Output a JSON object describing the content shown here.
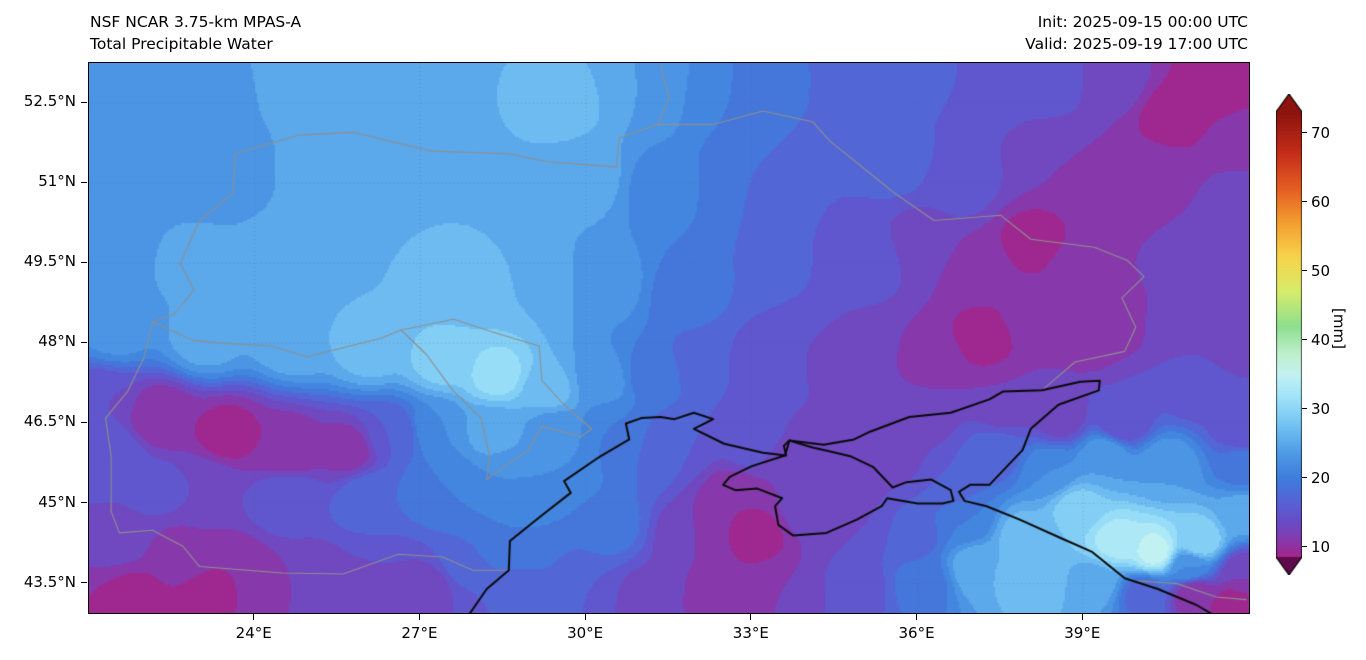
{
  "header": {
    "line1": "NSF NCAR 3.75-km MPAS-A",
    "line2": "Total Precipitable Water",
    "init": "Init: 2025-09-15 00:00 UTC",
    "valid": "Valid: 2025-09-19 17:00 UTC"
  },
  "chart_data": {
    "type": "heatmap",
    "title": "Total Precipitable Water",
    "units": "mm",
    "x_axis": {
      "label_ticks": [
        "24°E",
        "27°E",
        "30°E",
        "33°E",
        "36°E",
        "39°E"
      ],
      "tick_lons": [
        24,
        27,
        30,
        33,
        36,
        39
      ],
      "range": [
        21.0,
        42.0
      ]
    },
    "y_axis": {
      "label_ticks": [
        "52.5°N",
        "51°N",
        "49.5°N",
        "48°N",
        "46.5°N",
        "45°N",
        "43.5°N"
      ],
      "tick_lats": [
        52.5,
        51,
        49.5,
        48,
        46.5,
        45,
        43.5
      ],
      "range": [
        42.95,
        53.25
      ]
    },
    "colorbar": {
      "label": "[mm]",
      "ticks": [
        10,
        20,
        30,
        40,
        50,
        60,
        70
      ],
      "vmin": 8.5,
      "vmax": 73,
      "colormap": [
        [
          4,
          "#5e0a4d"
        ],
        [
          6,
          "#8c1266"
        ],
        [
          8,
          "#a81f7e"
        ],
        [
          10,
          "#93319f"
        ],
        [
          12,
          "#7a41b8"
        ],
        [
          14,
          "#664ec8"
        ],
        [
          16,
          "#5a5ed2"
        ],
        [
          18,
          "#4b6ed8"
        ],
        [
          20,
          "#3f7edc"
        ],
        [
          23,
          "#4b95e4"
        ],
        [
          26,
          "#63b2ee"
        ],
        [
          29,
          "#82cef4"
        ],
        [
          32,
          "#a3e4f8"
        ],
        [
          35,
          "#c2f1f2"
        ],
        [
          38,
          "#bfefcd"
        ],
        [
          42,
          "#8ddf8e"
        ],
        [
          47,
          "#d6ec6c"
        ],
        [
          52,
          "#f6d44c"
        ],
        [
          57,
          "#f39e31"
        ],
        [
          62,
          "#e45d22"
        ],
        [
          67,
          "#c52e1a"
        ],
        [
          73,
          "#8c130e"
        ]
      ]
    },
    "control_points": [
      [
        21.2,
        53.0,
        22
      ],
      [
        23.0,
        52.6,
        23
      ],
      [
        25.0,
        52.9,
        25
      ],
      [
        26.6,
        52.3,
        25
      ],
      [
        28.2,
        52.9,
        26
      ],
      [
        29.6,
        52.5,
        27
      ],
      [
        31.0,
        52.7,
        24
      ],
      [
        32.6,
        52.5,
        20
      ],
      [
        34.2,
        52.7,
        18
      ],
      [
        35.6,
        52.9,
        17
      ],
      [
        37.0,
        52.9,
        16
      ],
      [
        38.4,
        52.9,
        15
      ],
      [
        39.6,
        52.9,
        13
      ],
      [
        40.6,
        52.3,
        9
      ],
      [
        41.5,
        52.8,
        8
      ],
      [
        41.9,
        51.9,
        11
      ],
      [
        21.5,
        51.2,
        22
      ],
      [
        23.4,
        51.1,
        23
      ],
      [
        25.4,
        51.1,
        25
      ],
      [
        27.0,
        50.9,
        26
      ],
      [
        28.6,
        51.1,
        26
      ],
      [
        30.0,
        51.1,
        25
      ],
      [
        31.4,
        50.9,
        21
      ],
      [
        32.8,
        50.9,
        18
      ],
      [
        34.2,
        50.8,
        16
      ],
      [
        35.6,
        51.4,
        17
      ],
      [
        36.8,
        51.0,
        15
      ],
      [
        37.6,
        51.7,
        14
      ],
      [
        38.6,
        51.4,
        12
      ],
      [
        39.2,
        50.5,
        10
      ],
      [
        40.2,
        51.1,
        11
      ],
      [
        41.0,
        50.4,
        12
      ],
      [
        41.9,
        50.6,
        13
      ],
      [
        21.3,
        49.6,
        23
      ],
      [
        23.0,
        49.4,
        25
      ],
      [
        24.6,
        49.4,
        26
      ],
      [
        26.2,
        49.3,
        26
      ],
      [
        27.6,
        49.1,
        27
      ],
      [
        29.0,
        49.1,
        26
      ],
      [
        30.4,
        49.1,
        23
      ],
      [
        31.8,
        48.9,
        19
      ],
      [
        33.0,
        49.4,
        18
      ],
      [
        34.0,
        49.1,
        16
      ],
      [
        35.1,
        49.6,
        15
      ],
      [
        36.1,
        49.9,
        13
      ],
      [
        37.1,
        49.4,
        11
      ],
      [
        38.1,
        49.9,
        9
      ],
      [
        38.9,
        49.4,
        11
      ],
      [
        39.7,
        49.7,
        12
      ],
      [
        40.7,
        49.3,
        13
      ],
      [
        41.6,
        49.6,
        14
      ],
      [
        21.5,
        48.3,
        23
      ],
      [
        23.1,
        48.1,
        25
      ],
      [
        24.7,
        48.1,
        26
      ],
      [
        26.1,
        47.9,
        27
      ],
      [
        27.4,
        47.7,
        29
      ],
      [
        28.4,
        47.4,
        31
      ],
      [
        29.3,
        47.1,
        27
      ],
      [
        30.3,
        47.3,
        23
      ],
      [
        31.2,
        47.4,
        19
      ],
      [
        32.2,
        47.6,
        16
      ],
      [
        33.6,
        47.9,
        14
      ],
      [
        34.9,
        47.9,
        13
      ],
      [
        36.3,
        47.7,
        11
      ],
      [
        37.2,
        48.1,
        9
      ],
      [
        38.1,
        48.4,
        11
      ],
      [
        39.0,
        48.1,
        11
      ],
      [
        39.6,
        48.6,
        10
      ],
      [
        40.6,
        48.5,
        13
      ],
      [
        41.8,
        48.1,
        13
      ],
      [
        21.2,
        46.9,
        14
      ],
      [
        22.3,
        46.6,
        10
      ],
      [
        23.5,
        46.3,
        9
      ],
      [
        24.6,
        46.0,
        10
      ],
      [
        25.7,
        46.0,
        11
      ],
      [
        26.5,
        46.3,
        16
      ],
      [
        27.3,
        46.4,
        22
      ],
      [
        28.3,
        46.4,
        25
      ],
      [
        29.4,
        46.4,
        23
      ],
      [
        30.5,
        46.4,
        20
      ],
      [
        31.6,
        46.1,
        16
      ],
      [
        33.0,
        46.1,
        15
      ],
      [
        34.6,
        46.6,
        14
      ],
      [
        36.1,
        46.6,
        13
      ],
      [
        37.6,
        46.9,
        12
      ],
      [
        38.6,
        46.6,
        13
      ],
      [
        39.7,
        46.5,
        14
      ],
      [
        41.0,
        47.1,
        15
      ],
      [
        41.9,
        46.4,
        14
      ],
      [
        21.4,
        45.9,
        16
      ],
      [
        22.1,
        45.3,
        15
      ],
      [
        23.1,
        45.3,
        14
      ],
      [
        24.6,
        45.1,
        16
      ],
      [
        26.1,
        45.1,
        18
      ],
      [
        27.4,
        45.3,
        20
      ],
      [
        28.7,
        45.4,
        22
      ],
      [
        29.6,
        45.6,
        22
      ],
      [
        30.9,
        45.9,
        18
      ],
      [
        33.6,
        45.6,
        12
      ],
      [
        34.6,
        45.2,
        12
      ],
      [
        35.6,
        45.9,
        13
      ],
      [
        36.6,
        45.4,
        16
      ],
      [
        37.4,
        45.9,
        17
      ],
      [
        38.4,
        45.6,
        22
      ],
      [
        39.4,
        45.9,
        24
      ],
      [
        40.5,
        45.7,
        24
      ],
      [
        41.9,
        45.7,
        19
      ],
      [
        21.6,
        44.4,
        13
      ],
      [
        22.6,
        44.0,
        11
      ],
      [
        23.6,
        43.7,
        10
      ],
      [
        24.9,
        43.5,
        12
      ],
      [
        26.1,
        43.7,
        14
      ],
      [
        27.1,
        43.4,
        13
      ],
      [
        27.9,
        43.9,
        18
      ],
      [
        28.9,
        44.3,
        20
      ],
      [
        30.4,
        44.6,
        19
      ],
      [
        31.9,
        44.4,
        12
      ],
      [
        32.7,
        45.1,
        10
      ],
      [
        33.1,
        44.4,
        9
      ],
      [
        34.0,
        44.9,
        13
      ],
      [
        35.0,
        44.6,
        14
      ],
      [
        35.9,
        44.4,
        17
      ],
      [
        36.9,
        44.7,
        20
      ],
      [
        37.9,
        44.4,
        27
      ],
      [
        38.9,
        44.9,
        29
      ],
      [
        39.6,
        44.3,
        33
      ],
      [
        40.3,
        44.1,
        35
      ],
      [
        41.1,
        44.3,
        30
      ],
      [
        41.9,
        44.8,
        25
      ],
      [
        21.9,
        43.2,
        9
      ],
      [
        23.1,
        43.2,
        9
      ],
      [
        24.4,
        43.1,
        12
      ],
      [
        25.9,
        43.1,
        13
      ],
      [
        27.4,
        43.0,
        14
      ],
      [
        28.9,
        43.3,
        17
      ],
      [
        29.9,
        43.4,
        16
      ],
      [
        31.1,
        43.2,
        13
      ],
      [
        32.4,
        43.2,
        11
      ],
      [
        33.6,
        43.4,
        12
      ],
      [
        34.9,
        43.4,
        15
      ],
      [
        36.1,
        43.5,
        19
      ],
      [
        37.1,
        43.8,
        26
      ],
      [
        38.1,
        43.6,
        28
      ],
      [
        39.2,
        43.5,
        25
      ],
      [
        40.1,
        43.3,
        17
      ],
      [
        41.0,
        43.3,
        10
      ],
      [
        41.7,
        43.1,
        9
      ],
      [
        41.9,
        43.7,
        12
      ],
      [
        40.9,
        43.8,
        22
      ]
    ],
    "coastlines": [
      [
        [
          27.9,
          42.95
        ],
        [
          28.2,
          43.4
        ],
        [
          28.6,
          43.75
        ],
        [
          28.62,
          44.3
        ],
        [
          29.2,
          44.78
        ],
        [
          29.72,
          45.2
        ],
        [
          29.6,
          45.42
        ],
        [
          30.25,
          45.88
        ],
        [
          30.45,
          46.0
        ],
        [
          30.78,
          46.2
        ],
        [
          30.72,
          46.5
        ],
        [
          31.0,
          46.6
        ],
        [
          31.35,
          46.62
        ],
        [
          31.6,
          46.58
        ],
        [
          31.95,
          46.7
        ],
        [
          32.3,
          46.58
        ],
        [
          31.95,
          46.4
        ],
        [
          32.5,
          46.12
        ],
        [
          33.2,
          45.95
        ],
        [
          33.62,
          45.9
        ],
        [
          33.58,
          46.08
        ],
        [
          33.68,
          46.18
        ],
        [
          34.3,
          46.1
        ],
        [
          34.85,
          46.2
        ],
        [
          35.15,
          46.35
        ],
        [
          35.85,
          46.62
        ],
        [
          36.6,
          46.7
        ],
        [
          37.3,
          46.95
        ],
        [
          37.55,
          47.1
        ],
        [
          38.25,
          47.12
        ],
        [
          38.95,
          47.28
        ],
        [
          39.3,
          47.3
        ],
        [
          39.28,
          47.12
        ],
        [
          38.55,
          46.85
        ],
        [
          38.05,
          46.4
        ],
        [
          37.9,
          46.0
        ],
        [
          37.3,
          45.35
        ],
        [
          36.95,
          45.35
        ],
        [
          36.75,
          45.22
        ],
        [
          36.85,
          45.05
        ],
        [
          37.25,
          44.95
        ],
        [
          37.85,
          44.7
        ],
        [
          38.6,
          44.35
        ],
        [
          39.15,
          44.1
        ],
        [
          39.75,
          43.6
        ],
        [
          40.35,
          43.4
        ],
        [
          41.05,
          43.1
        ],
        [
          41.3,
          42.95
        ]
      ],
      [
        [
          33.68,
          46.18
        ],
        [
          33.6,
          45.9
        ],
        [
          33.0,
          45.7
        ],
        [
          32.6,
          45.5
        ],
        [
          32.48,
          45.35
        ],
        [
          32.7,
          45.25
        ],
        [
          33.1,
          45.28
        ],
        [
          33.55,
          45.1
        ],
        [
          33.42,
          44.95
        ],
        [
          33.48,
          44.6
        ],
        [
          33.75,
          44.4
        ],
        [
          34.35,
          44.45
        ],
        [
          34.9,
          44.7
        ],
        [
          35.35,
          44.95
        ],
        [
          35.45,
          45.1
        ],
        [
          36.0,
          45.0
        ],
        [
          36.45,
          45.0
        ],
        [
          36.65,
          45.05
        ],
        [
          36.6,
          45.25
        ],
        [
          36.25,
          45.45
        ],
        [
          35.8,
          45.4
        ],
        [
          35.55,
          45.3
        ],
        [
          35.2,
          45.68
        ],
        [
          34.8,
          45.88
        ],
        [
          34.4,
          45.98
        ],
        [
          34.1,
          46.05
        ],
        [
          33.68,
          46.18
        ]
      ]
    ],
    "borders": [
      [
        [
          23.65,
          51.55
        ],
        [
          24.8,
          51.9
        ],
        [
          25.8,
          51.95
        ],
        [
          27.2,
          51.6
        ],
        [
          28.6,
          51.55
        ],
        [
          29.3,
          51.4
        ],
        [
          30.55,
          51.3
        ],
        [
          30.6,
          51.85
        ],
        [
          31.3,
          52.1
        ],
        [
          32.3,
          52.1
        ],
        [
          33.2,
          52.35
        ],
        [
          34.1,
          52.15
        ],
        [
          34.4,
          51.8
        ],
        [
          35.3,
          51.05
        ],
        [
          35.6,
          50.8
        ],
        [
          36.3,
          50.3
        ],
        [
          37.5,
          50.4
        ],
        [
          38.05,
          49.95
        ],
        [
          39.2,
          49.8
        ],
        [
          39.8,
          49.55
        ],
        [
          40.1,
          49.25
        ],
        [
          39.7,
          48.85
        ],
        [
          39.95,
          48.3
        ],
        [
          39.75,
          47.85
        ],
        [
          38.85,
          47.65
        ],
        [
          38.25,
          47.12
        ]
      ],
      [
        [
          23.65,
          51.55
        ],
        [
          23.6,
          50.8
        ],
        [
          23.0,
          50.3
        ],
        [
          22.65,
          49.5
        ],
        [
          22.9,
          49.0
        ],
        [
          22.55,
          48.55
        ],
        [
          22.15,
          48.4
        ]
      ],
      [
        [
          22.15,
          48.4
        ],
        [
          22.9,
          48.05
        ],
        [
          23.5,
          48.0
        ],
        [
          24.3,
          47.95
        ],
        [
          24.95,
          47.75
        ],
        [
          26.3,
          48.1
        ],
        [
          26.65,
          48.25
        ]
      ],
      [
        [
          26.65,
          48.25
        ],
        [
          27.1,
          47.8
        ],
        [
          27.6,
          47.1
        ],
        [
          28.1,
          46.6
        ],
        [
          28.25,
          45.9
        ],
        [
          28.2,
          45.45
        ]
      ],
      [
        [
          26.65,
          48.25
        ],
        [
          27.6,
          48.45
        ],
        [
          28.35,
          48.2
        ],
        [
          29.15,
          47.95
        ],
        [
          29.2,
          47.3
        ],
        [
          29.6,
          46.85
        ],
        [
          30.1,
          46.4
        ],
        [
          29.9,
          46.25
        ],
        [
          29.2,
          46.45
        ],
        [
          28.95,
          46.0
        ],
        [
          28.2,
          45.45
        ]
      ],
      [
        [
          21.4,
          44.85
        ],
        [
          21.55,
          44.45
        ],
        [
          22.15,
          44.5
        ],
        [
          22.7,
          44.2
        ],
        [
          23.0,
          43.82
        ],
        [
          24.5,
          43.7
        ],
        [
          25.6,
          43.68
        ],
        [
          26.6,
          44.05
        ],
        [
          27.4,
          44.0
        ],
        [
          27.95,
          43.75
        ],
        [
          28.6,
          43.75
        ]
      ],
      [
        [
          21.3,
          46.6
        ],
        [
          21.7,
          47.1
        ],
        [
          22.0,
          47.75
        ],
        [
          22.15,
          48.4
        ]
      ],
      [
        [
          21.3,
          46.6
        ],
        [
          21.4,
          45.9
        ],
        [
          21.4,
          44.85
        ]
      ],
      [
        [
          40.0,
          43.55
        ],
        [
          40.7,
          43.5
        ],
        [
          41.4,
          43.25
        ],
        [
          41.95,
          43.2
        ]
      ],
      [
        [
          31.3,
          52.1
        ],
        [
          31.5,
          52.6
        ],
        [
          31.35,
          53.2
        ]
      ]
    ]
  }
}
